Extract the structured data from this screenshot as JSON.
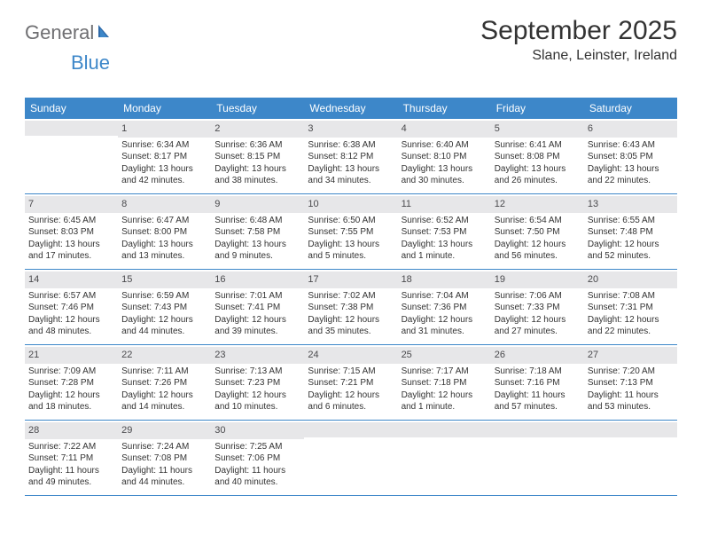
{
  "logo": {
    "word1": "General",
    "word2": "Blue"
  },
  "title": "September 2025",
  "location": "Slane, Leinster, Ireland",
  "colors": {
    "header_bg": "#3d87c9",
    "daynum_bg": "#e7e7e9",
    "text": "#333333",
    "logo_gray": "#6f6f72",
    "logo_blue": "#3d87c9",
    "page_bg": "#ffffff"
  },
  "day_headers": [
    "Sunday",
    "Monday",
    "Tuesday",
    "Wednesday",
    "Thursday",
    "Friday",
    "Saturday"
  ],
  "weeks": [
    [
      {
        "blank": true
      },
      {
        "n": "1",
        "sunrise": "Sunrise: 6:34 AM",
        "sunset": "Sunset: 8:17 PM",
        "daylight": "Daylight: 13 hours and 42 minutes."
      },
      {
        "n": "2",
        "sunrise": "Sunrise: 6:36 AM",
        "sunset": "Sunset: 8:15 PM",
        "daylight": "Daylight: 13 hours and 38 minutes."
      },
      {
        "n": "3",
        "sunrise": "Sunrise: 6:38 AM",
        "sunset": "Sunset: 8:12 PM",
        "daylight": "Daylight: 13 hours and 34 minutes."
      },
      {
        "n": "4",
        "sunrise": "Sunrise: 6:40 AM",
        "sunset": "Sunset: 8:10 PM",
        "daylight": "Daylight: 13 hours and 30 minutes."
      },
      {
        "n": "5",
        "sunrise": "Sunrise: 6:41 AM",
        "sunset": "Sunset: 8:08 PM",
        "daylight": "Daylight: 13 hours and 26 minutes."
      },
      {
        "n": "6",
        "sunrise": "Sunrise: 6:43 AM",
        "sunset": "Sunset: 8:05 PM",
        "daylight": "Daylight: 13 hours and 22 minutes."
      }
    ],
    [
      {
        "n": "7",
        "sunrise": "Sunrise: 6:45 AM",
        "sunset": "Sunset: 8:03 PM",
        "daylight": "Daylight: 13 hours and 17 minutes."
      },
      {
        "n": "8",
        "sunrise": "Sunrise: 6:47 AM",
        "sunset": "Sunset: 8:00 PM",
        "daylight": "Daylight: 13 hours and 13 minutes."
      },
      {
        "n": "9",
        "sunrise": "Sunrise: 6:48 AM",
        "sunset": "Sunset: 7:58 PM",
        "daylight": "Daylight: 13 hours and 9 minutes."
      },
      {
        "n": "10",
        "sunrise": "Sunrise: 6:50 AM",
        "sunset": "Sunset: 7:55 PM",
        "daylight": "Daylight: 13 hours and 5 minutes."
      },
      {
        "n": "11",
        "sunrise": "Sunrise: 6:52 AM",
        "sunset": "Sunset: 7:53 PM",
        "daylight": "Daylight: 13 hours and 1 minute."
      },
      {
        "n": "12",
        "sunrise": "Sunrise: 6:54 AM",
        "sunset": "Sunset: 7:50 PM",
        "daylight": "Daylight: 12 hours and 56 minutes."
      },
      {
        "n": "13",
        "sunrise": "Sunrise: 6:55 AM",
        "sunset": "Sunset: 7:48 PM",
        "daylight": "Daylight: 12 hours and 52 minutes."
      }
    ],
    [
      {
        "n": "14",
        "sunrise": "Sunrise: 6:57 AM",
        "sunset": "Sunset: 7:46 PM",
        "daylight": "Daylight: 12 hours and 48 minutes."
      },
      {
        "n": "15",
        "sunrise": "Sunrise: 6:59 AM",
        "sunset": "Sunset: 7:43 PM",
        "daylight": "Daylight: 12 hours and 44 minutes."
      },
      {
        "n": "16",
        "sunrise": "Sunrise: 7:01 AM",
        "sunset": "Sunset: 7:41 PM",
        "daylight": "Daylight: 12 hours and 39 minutes."
      },
      {
        "n": "17",
        "sunrise": "Sunrise: 7:02 AM",
        "sunset": "Sunset: 7:38 PM",
        "daylight": "Daylight: 12 hours and 35 minutes."
      },
      {
        "n": "18",
        "sunrise": "Sunrise: 7:04 AM",
        "sunset": "Sunset: 7:36 PM",
        "daylight": "Daylight: 12 hours and 31 minutes."
      },
      {
        "n": "19",
        "sunrise": "Sunrise: 7:06 AM",
        "sunset": "Sunset: 7:33 PM",
        "daylight": "Daylight: 12 hours and 27 minutes."
      },
      {
        "n": "20",
        "sunrise": "Sunrise: 7:08 AM",
        "sunset": "Sunset: 7:31 PM",
        "daylight": "Daylight: 12 hours and 22 minutes."
      }
    ],
    [
      {
        "n": "21",
        "sunrise": "Sunrise: 7:09 AM",
        "sunset": "Sunset: 7:28 PM",
        "daylight": "Daylight: 12 hours and 18 minutes."
      },
      {
        "n": "22",
        "sunrise": "Sunrise: 7:11 AM",
        "sunset": "Sunset: 7:26 PM",
        "daylight": "Daylight: 12 hours and 14 minutes."
      },
      {
        "n": "23",
        "sunrise": "Sunrise: 7:13 AM",
        "sunset": "Sunset: 7:23 PM",
        "daylight": "Daylight: 12 hours and 10 minutes."
      },
      {
        "n": "24",
        "sunrise": "Sunrise: 7:15 AM",
        "sunset": "Sunset: 7:21 PM",
        "daylight": "Daylight: 12 hours and 6 minutes."
      },
      {
        "n": "25",
        "sunrise": "Sunrise: 7:17 AM",
        "sunset": "Sunset: 7:18 PM",
        "daylight": "Daylight: 12 hours and 1 minute."
      },
      {
        "n": "26",
        "sunrise": "Sunrise: 7:18 AM",
        "sunset": "Sunset: 7:16 PM",
        "daylight": "Daylight: 11 hours and 57 minutes."
      },
      {
        "n": "27",
        "sunrise": "Sunrise: 7:20 AM",
        "sunset": "Sunset: 7:13 PM",
        "daylight": "Daylight: 11 hours and 53 minutes."
      }
    ],
    [
      {
        "n": "28",
        "sunrise": "Sunrise: 7:22 AM",
        "sunset": "Sunset: 7:11 PM",
        "daylight": "Daylight: 11 hours and 49 minutes."
      },
      {
        "n": "29",
        "sunrise": "Sunrise: 7:24 AM",
        "sunset": "Sunset: 7:08 PM",
        "daylight": "Daylight: 11 hours and 44 minutes."
      },
      {
        "n": "30",
        "sunrise": "Sunrise: 7:25 AM",
        "sunset": "Sunset: 7:06 PM",
        "daylight": "Daylight: 11 hours and 40 minutes."
      },
      {
        "blank": true
      },
      {
        "blank": true
      },
      {
        "blank": true
      },
      {
        "blank": true
      }
    ]
  ]
}
